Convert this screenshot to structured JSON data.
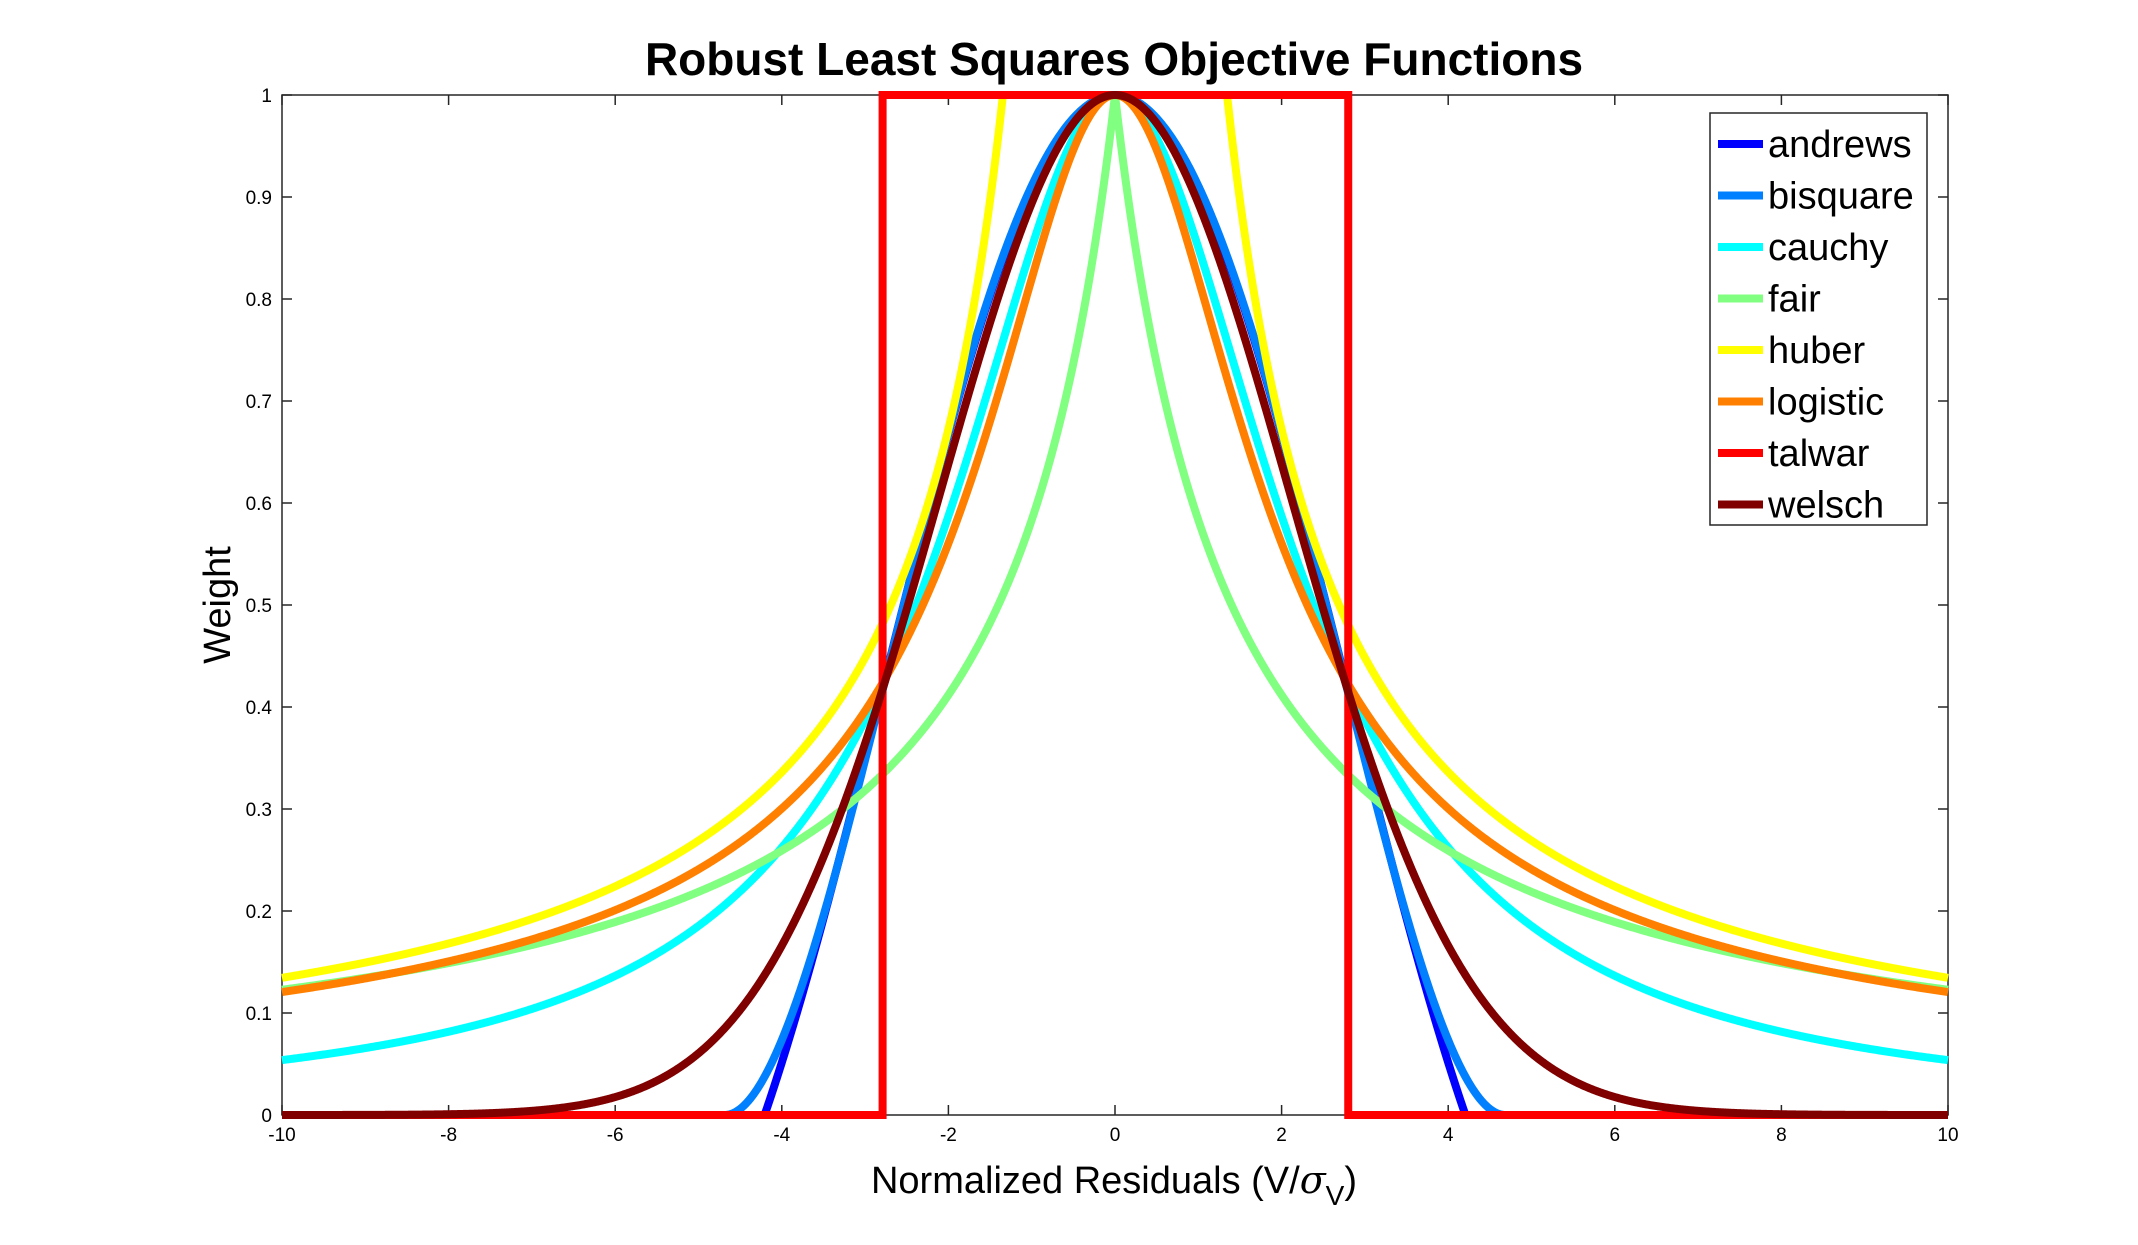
{
  "chart_data": {
    "type": "line",
    "title": "Robust Least Squares Objective Functions",
    "xlabel_main": "Normalized Residuals (V/",
    "xlabel_sigma": "σ",
    "xlabel_sub": "V",
    "xlabel_close": ")",
    "ylabel": "Weight",
    "xlim": [
      -10,
      10
    ],
    "ylim": [
      0,
      1
    ],
    "xticks": [
      -10,
      -8,
      -6,
      -4,
      -2,
      0,
      2,
      4,
      6,
      8,
      10
    ],
    "yticks": [
      0,
      0.1,
      0.2,
      0.3,
      0.4,
      0.5,
      0.6,
      0.7,
      0.8,
      0.9,
      1
    ],
    "grid": false,
    "legend_position": "top-right",
    "series": [
      {
        "name": "andrews",
        "color": "#0000ff",
        "function": "andrews",
        "tuning": 1.339
      },
      {
        "name": "bisquare",
        "color": "#0080ff",
        "function": "bisquare",
        "tuning": 4.685
      },
      {
        "name": "cauchy",
        "color": "#00ffff",
        "function": "cauchy",
        "tuning": 2.385
      },
      {
        "name": "fair",
        "color": "#80ff80",
        "function": "fair",
        "tuning": 1.4
      },
      {
        "name": "huber",
        "color": "#ffff00",
        "function": "huber",
        "tuning": 1.345
      },
      {
        "name": "logistic",
        "color": "#ff8000",
        "function": "logistic",
        "tuning": 1.205
      },
      {
        "name": "talwar",
        "color": "#ff0000",
        "function": "talwar",
        "tuning": 2.795
      },
      {
        "name": "welsch",
        "color": "#800000",
        "function": "welsch",
        "tuning": 2.985
      }
    ]
  }
}
